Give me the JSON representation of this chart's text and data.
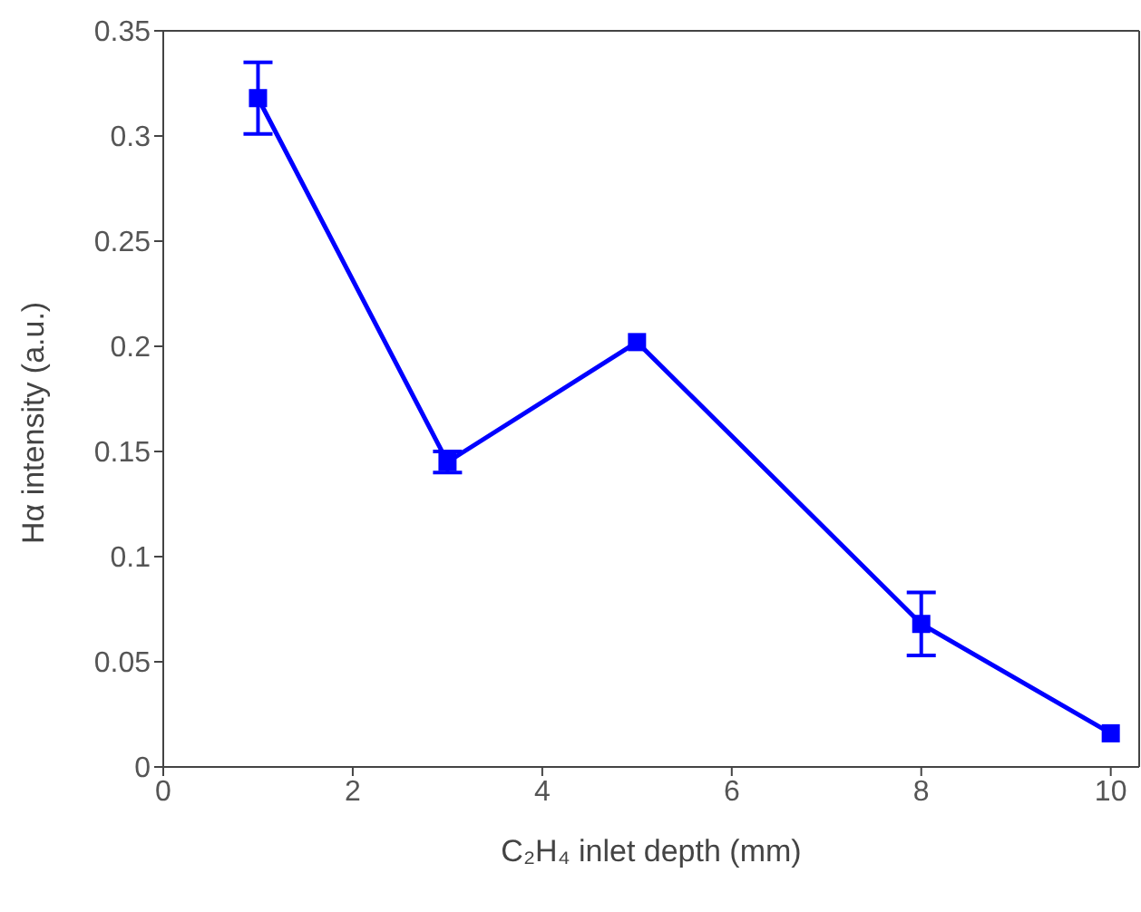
{
  "chart_data": {
    "type": "line",
    "xlabel": "C₂H₄ inlet depth (mm)",
    "ylabel": "Hα intensity (a.u.)",
    "x": [
      1,
      3,
      5,
      8,
      10
    ],
    "series": [
      {
        "color": "#0000ff",
        "values": [
          0.318,
          0.145,
          0.202,
          0.068,
          0.016
        ],
        "errors": [
          0.017,
          0.005,
          null,
          0.015,
          null
        ]
      }
    ],
    "xlim": [
      0,
      10.3
    ],
    "xticks": [
      0,
      2,
      4,
      6,
      8,
      10
    ],
    "ylim": [
      0,
      0.35
    ],
    "yticks": [
      0,
      0.05,
      0.1,
      0.15,
      0.2,
      0.25,
      0.3,
      0.35
    ],
    "marker": "square",
    "line_style": "solid",
    "grid": false,
    "legend": false
  }
}
